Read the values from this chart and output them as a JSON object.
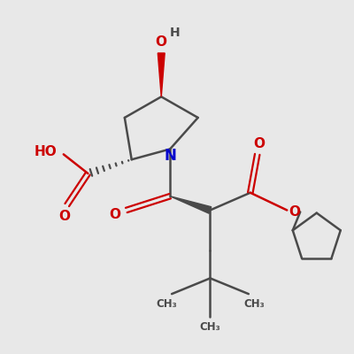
{
  "bg_color": "#e8e8e8",
  "bond_color": "#4a4a4a",
  "oxygen_color": "#cc0000",
  "nitrogen_color": "#0000cc",
  "hydrogen_color": "#4a4a4a",
  "lw": 1.8,
  "figsize": [
    4.0,
    4.0
  ],
  "dpi": 100,
  "xlim": [
    0,
    10
  ],
  "ylim": [
    0,
    10
  ]
}
